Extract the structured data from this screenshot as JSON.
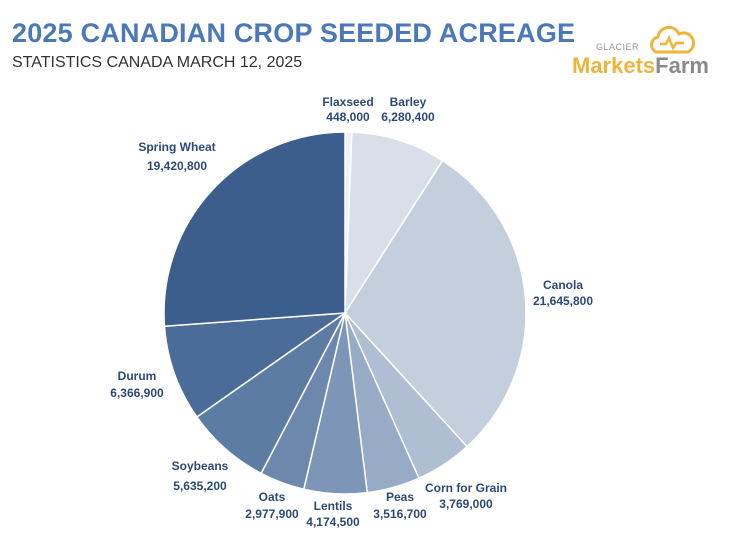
{
  "header": {
    "title": "2025 CANADIAN CROP SEEDED ACREAGE",
    "subtitle": "STATISTICS CANADA MARCH 12, 2025"
  },
  "logo": {
    "small": "GLACIER",
    "part1": "Markets",
    "part2": "Farm"
  },
  "chart_data": {
    "type": "pie",
    "title": "2025 CANADIAN CROP SEEDED ACREAGE",
    "start": "12 o'clock, clockwise",
    "slices": [
      {
        "name": "Flaxseed",
        "value": 448000,
        "label": "448,000",
        "color": "#eef1f5"
      },
      {
        "name": "Barley",
        "value": 6280400,
        "label": "6,280,400",
        "color": "#d8dfe8"
      },
      {
        "name": "Canola",
        "value": 21645800,
        "label": "21,645,800",
        "color": "#c4cfdd"
      },
      {
        "name": "Corn for Grain",
        "value": 3769000,
        "label": "3,769,000",
        "color": "#afbed3"
      },
      {
        "name": "Peas",
        "value": 3516700,
        "label": "3,516,700",
        "color": "#97abc7"
      },
      {
        "name": "Lentils",
        "value": 4174500,
        "label": "4,174,500",
        "color": "#7d96b8"
      },
      {
        "name": "Oats",
        "value": 2977900,
        "label": "2,977,900",
        "color": "#6c88ad"
      },
      {
        "name": "Soybeans",
        "value": 5635200,
        "label": "5,635,200",
        "color": "#5d7ca4"
      },
      {
        "name": "Durum",
        "value": 6366900,
        "label": "6,366,900",
        "color": "#4b6c98"
      },
      {
        "name": "Spring Wheat",
        "value": 19420800,
        "label": "19,420,800",
        "color": "#3b5e8c"
      }
    ]
  }
}
